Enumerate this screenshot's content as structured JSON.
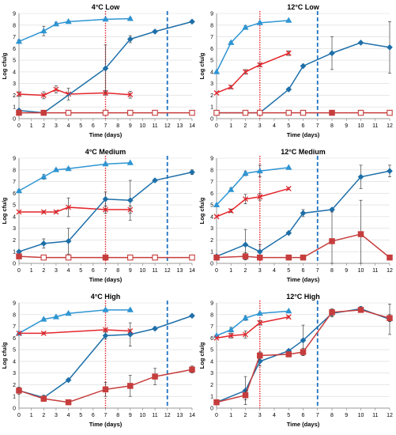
{
  "colors": {
    "blue_triangle": "#2e95d3",
    "blue_diamond": "#1e6fa8",
    "red_cross": "#e3262c",
    "red_square": "#c63d3d",
    "red_dotted_line": "#e3262c",
    "blue_dashed_line": "#1f72c1"
  },
  "chart_data": [
    {
      "type": "line",
      "title": "4°C Low",
      "xlabel": "Time (days)",
      "ylabel": "Log cfu/g",
      "xlim": [
        0,
        14
      ],
      "xticks": [
        0,
        1,
        2,
        3,
        4,
        5,
        6,
        7,
        8,
        9,
        10,
        11,
        12,
        13,
        14
      ],
      "ylim": [
        0,
        9
      ],
      "yticks": [
        0,
        1,
        2,
        3,
        4,
        5,
        6,
        7,
        8,
        9
      ],
      "vlines": [
        {
          "x": 7,
          "style": "red-dotted"
        },
        {
          "x": 12,
          "style": "blue-dashed"
        }
      ],
      "series": [
        {
          "marker": "triangle",
          "x": [
            0,
            2,
            3,
            4,
            7,
            9
          ],
          "y": [
            6.6,
            7.5,
            8.1,
            8.3,
            8.5,
            8.55
          ],
          "err": [
            0.15,
            0.4,
            0.15,
            0.1,
            0.1,
            0.1
          ]
        },
        {
          "marker": "cross",
          "x": [
            0,
            2,
            3,
            4,
            7,
            9
          ],
          "y": [
            2.1,
            2.0,
            2.5,
            2.1,
            2.2,
            2.05
          ],
          "err": [
            0.2,
            0.3,
            0.3,
            0.5,
            0.2,
            0.3
          ]
        },
        {
          "marker": "diamond",
          "x": [
            0,
            2,
            7,
            9,
            11,
            14
          ],
          "y": [
            0.7,
            0.5,
            4.3,
            6.8,
            7.45,
            8.3
          ],
          "err": [
            0,
            0,
            2.0,
            0.3,
            0.1,
            0.1
          ]
        },
        {
          "marker": "square-open",
          "x": [
            0,
            2,
            4,
            7,
            9,
            11,
            14
          ],
          "y": [
            0.5,
            0.5,
            0.5,
            0.5,
            0.5,
            0.5,
            0.5
          ],
          "err": [
            0,
            0,
            0,
            0,
            0,
            0,
            0
          ],
          "filled": [
            true,
            true,
            false,
            false,
            false,
            false,
            false
          ]
        }
      ]
    },
    {
      "type": "line",
      "title": "12°C Low",
      "xlabel": "Time (days)",
      "ylabel": "Log cfu/g",
      "xlim": [
        0,
        12
      ],
      "xticks": [
        0,
        1,
        2,
        3,
        4,
        5,
        6,
        7,
        8,
        9,
        10,
        11,
        12
      ],
      "ylim": [
        0,
        9
      ],
      "yticks": [
        0,
        1,
        2,
        3,
        4,
        5,
        6,
        7,
        8,
        9
      ],
      "vlines": [
        {
          "x": 3,
          "style": "red-dotted"
        },
        {
          "x": 7,
          "style": "blue-dashed"
        }
      ],
      "series": [
        {
          "marker": "triangle",
          "x": [
            0,
            1,
            2,
            3,
            5
          ],
          "y": [
            4.0,
            6.5,
            7.8,
            8.2,
            8.4
          ],
          "err": [
            0,
            0.1,
            0.15,
            0.1,
            0.05
          ]
        },
        {
          "marker": "cross",
          "x": [
            0,
            1,
            2,
            3,
            5
          ],
          "y": [
            2.2,
            2.7,
            4.0,
            4.6,
            5.6
          ],
          "err": [
            0,
            0.15,
            0.2,
            0.15,
            0.2
          ]
        },
        {
          "marker": "diamond",
          "x": [
            0,
            2,
            3,
            5,
            6,
            8,
            10,
            12
          ],
          "y": [
            0.5,
            0.5,
            0.5,
            2.5,
            4.5,
            5.6,
            6.5,
            6.1
          ],
          "err": [
            0,
            0,
            0,
            0,
            0,
            1.4,
            0,
            2.2
          ]
        },
        {
          "marker": "square-open",
          "x": [
            0,
            2,
            3,
            5,
            6,
            8,
            10,
            12
          ],
          "y": [
            0.5,
            0.5,
            0.5,
            0.5,
            0.5,
            0.5,
            0.5,
            0.5
          ],
          "err": [
            0,
            0,
            0,
            0,
            0,
            0,
            0,
            0
          ],
          "filled": [
            false,
            false,
            false,
            false,
            false,
            true,
            false,
            false
          ]
        }
      ]
    },
    {
      "type": "line",
      "title": "4°C Medium",
      "xlabel": "Time (days)",
      "ylabel": "Log cfu/g",
      "xlim": [
        0,
        14
      ],
      "xticks": [
        0,
        1,
        2,
        3,
        4,
        5,
        6,
        7,
        8,
        9,
        10,
        11,
        12,
        13,
        14
      ],
      "ylim": [
        0,
        9
      ],
      "yticks": [
        0,
        1,
        2,
        3,
        4,
        5,
        6,
        7,
        8,
        9
      ],
      "vlines": [
        {
          "x": 7,
          "style": "red-dotted"
        },
        {
          "x": 12,
          "style": "blue-dashed"
        }
      ],
      "series": [
        {
          "marker": "triangle",
          "x": [
            0,
            2,
            3,
            4,
            7,
            9
          ],
          "y": [
            6.2,
            7.4,
            8.0,
            8.1,
            8.5,
            8.6
          ],
          "err": [
            0.1,
            0.2,
            0.1,
            0.1,
            0.1,
            0.05
          ]
        },
        {
          "marker": "cross",
          "x": [
            0,
            2,
            3,
            4,
            7,
            9
          ],
          "y": [
            4.4,
            4.4,
            4.4,
            4.8,
            4.6,
            4.6
          ],
          "err": [
            0,
            0.1,
            0.1,
            0.8,
            0.3,
            0.3
          ]
        },
        {
          "marker": "diamond",
          "x": [
            0,
            2,
            4,
            7,
            9,
            11,
            14
          ],
          "y": [
            1.0,
            1.7,
            1.9,
            5.5,
            5.4,
            7.1,
            7.8
          ],
          "err": [
            0,
            0.4,
            1.1,
            0.6,
            1.7,
            0.1,
            0.2
          ]
        },
        {
          "marker": "square-open",
          "x": [
            0,
            2,
            4,
            7,
            9,
            11,
            14
          ],
          "y": [
            0.6,
            0.5,
            0.5,
            0.5,
            0.5,
            0.5,
            0.5
          ],
          "err": [
            0,
            0,
            0,
            0,
            0,
            0,
            0
          ],
          "filled": [
            true,
            false,
            false,
            true,
            false,
            false,
            false
          ]
        }
      ]
    },
    {
      "type": "line",
      "title": "12°C Medium",
      "xlabel": "Time (days)",
      "ylabel": "Log cfu/g",
      "xlim": [
        0,
        12
      ],
      "xticks": [
        0,
        1,
        2,
        3,
        4,
        5,
        6,
        7,
        8,
        9,
        10,
        11,
        12
      ],
      "ylim": [
        0,
        9
      ],
      "yticks": [
        0,
        1,
        2,
        3,
        4,
        5,
        6,
        7,
        8,
        9
      ],
      "vlines": [
        {
          "x": 3,
          "style": "red-dotted"
        },
        {
          "x": 7,
          "style": "blue-dashed"
        }
      ],
      "series": [
        {
          "marker": "triangle",
          "x": [
            0,
            1,
            2,
            3,
            5
          ],
          "y": [
            5.0,
            6.3,
            7.7,
            7.9,
            8.2
          ],
          "err": [
            0,
            0.15,
            0.2,
            0.5,
            0.05
          ]
        },
        {
          "marker": "cross",
          "x": [
            0,
            1,
            2,
            3,
            5
          ],
          "y": [
            4.0,
            4.5,
            5.5,
            5.7,
            6.4
          ],
          "err": [
            0,
            0.15,
            0.4,
            0.3,
            0.1
          ]
        },
        {
          "marker": "diamond",
          "x": [
            0,
            2,
            3,
            5,
            6,
            8,
            10,
            12
          ],
          "y": [
            0.6,
            1.6,
            1.0,
            2.6,
            4.3,
            4.6,
            7.4,
            7.9
          ],
          "err": [
            0,
            1.3,
            0.6,
            0,
            0.3,
            0,
            1.0,
            0.5
          ]
        },
        {
          "marker": "square",
          "x": [
            0,
            2,
            3,
            5,
            6,
            8,
            10,
            12
          ],
          "y": [
            0.5,
            0.6,
            0.5,
            0.5,
            0.5,
            1.9,
            2.5,
            0.5
          ],
          "err": [
            0,
            0.3,
            0,
            0,
            0,
            2.5,
            2.9,
            0
          ]
        }
      ]
    },
    {
      "type": "line",
      "title": "4°C High",
      "xlabel": "Time (days)",
      "ylabel": "Log cfu/g",
      "xlim": [
        0,
        14
      ],
      "xticks": [
        0,
        1,
        2,
        3,
        4,
        5,
        6,
        7,
        8,
        9,
        10,
        11,
        12,
        13,
        14
      ],
      "ylim": [
        0,
        9
      ],
      "yticks": [
        0,
        1,
        2,
        3,
        4,
        5,
        6,
        7,
        8,
        9
      ],
      "vlines": [
        {
          "x": 7,
          "style": "red-dotted"
        },
        {
          "x": 12,
          "style": "blue-dashed"
        }
      ],
      "series": [
        {
          "marker": "triangle",
          "x": [
            0,
            2,
            3,
            4,
            7,
            9
          ],
          "y": [
            6.4,
            7.6,
            7.8,
            8.1,
            8.4,
            8.4
          ],
          "err": [
            0.1,
            0.1,
            0.1,
            0.1,
            0.1,
            0.1
          ]
        },
        {
          "marker": "cross",
          "x": [
            0,
            2,
            7,
            9
          ],
          "y": [
            6.4,
            6.4,
            6.7,
            6.6
          ],
          "err": [
            0,
            0.1,
            0.1,
            0.1
          ]
        },
        {
          "marker": "diamond",
          "x": [
            0,
            2,
            4,
            7,
            9,
            11,
            14
          ],
          "y": [
            1.5,
            0.9,
            2.4,
            6.2,
            6.3,
            6.8,
            7.9
          ],
          "err": [
            0,
            0.2,
            0,
            0.3,
            1.0,
            0,
            0
          ]
        },
        {
          "marker": "square",
          "x": [
            0,
            2,
            4,
            7,
            9,
            11,
            14
          ],
          "y": [
            1.5,
            0.8,
            0.5,
            1.6,
            1.9,
            2.7,
            3.3
          ],
          "err": [
            0.3,
            0.2,
            0,
            0.6,
            0.9,
            0.7,
            0.3
          ]
        }
      ]
    },
    {
      "type": "line",
      "title": "12°C High",
      "xlabel": "Time (days)",
      "ylabel": "Log cfu/g",
      "xlim": [
        0,
        12
      ],
      "xticks": [
        0,
        1,
        2,
        3,
        4,
        5,
        6,
        7,
        8,
        9,
        10,
        11,
        12
      ],
      "ylim": [
        0,
        9
      ],
      "yticks": [
        0,
        1,
        2,
        3,
        4,
        5,
        6,
        7,
        8,
        9
      ],
      "vlines": [
        {
          "x": 3,
          "style": "red-dotted"
        },
        {
          "x": 7,
          "style": "blue-dashed"
        }
      ],
      "series": [
        {
          "marker": "triangle",
          "x": [
            0,
            1,
            2,
            3,
            5
          ],
          "y": [
            6.2,
            6.7,
            7.7,
            8.1,
            8.3
          ],
          "err": [
            0,
            0.2,
            0.2,
            0.1,
            0.05
          ]
        },
        {
          "marker": "cross",
          "x": [
            0,
            1,
            2,
            3,
            5
          ],
          "y": [
            6.0,
            6.2,
            6.3,
            7.3,
            7.8
          ],
          "err": [
            0,
            0.2,
            0.3,
            0.2,
            0.1
          ]
        },
        {
          "marker": "diamond",
          "x": [
            0,
            2,
            3,
            5,
            6,
            8,
            10,
            12
          ],
          "y": [
            0.5,
            1.5,
            4.0,
            4.9,
            5.8,
            8.1,
            8.5,
            7.6
          ],
          "err": [
            0,
            1.2,
            0.4,
            0,
            1.3,
            0.3,
            0.2,
            1.3
          ]
        },
        {
          "marker": "square",
          "x": [
            0,
            2,
            3,
            5,
            6,
            8,
            10,
            12
          ],
          "y": [
            0.5,
            1.1,
            4.5,
            4.6,
            4.8,
            8.2,
            8.4,
            7.7
          ],
          "err": [
            0,
            0.4,
            0.3,
            0.2,
            0.3,
            0.3,
            0.1,
            0.3
          ]
        }
      ]
    }
  ]
}
